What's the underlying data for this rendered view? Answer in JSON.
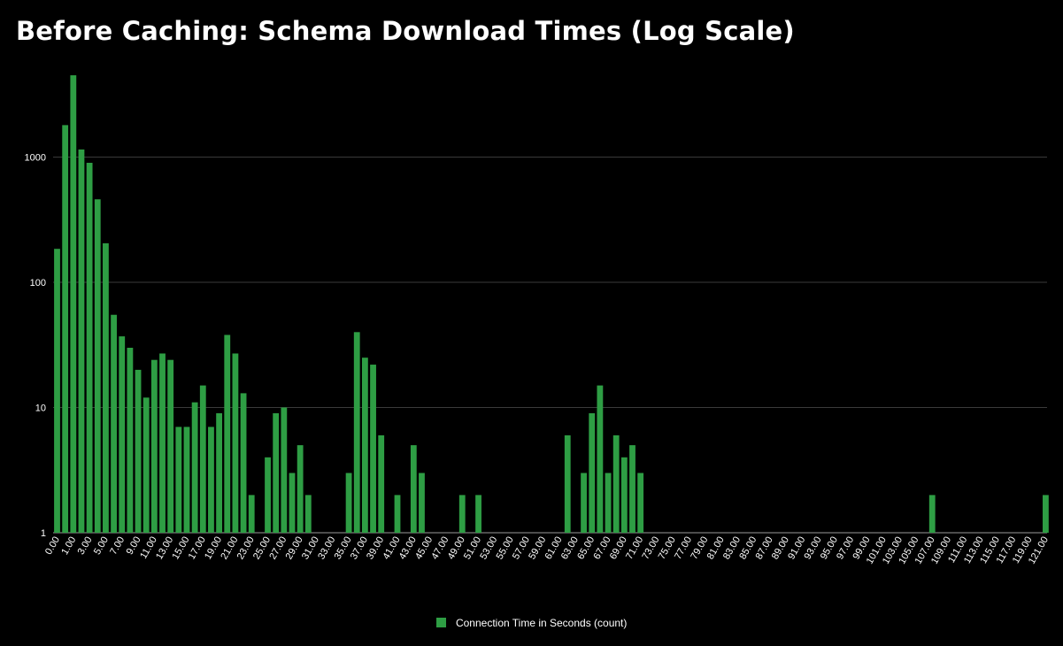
{
  "chart_data": {
    "type": "bar",
    "title": "Before Caching: Schema Download Times (Log Scale)",
    "xlabel": "",
    "ylabel": "",
    "y_scale": "log",
    "ylim": [
      1,
      5000
    ],
    "yticks": [
      1,
      10,
      100,
      1000
    ],
    "ytick_labels": [
      "1",
      "10",
      "100",
      "1000"
    ],
    "grid": true,
    "legend_position": "bottom",
    "bar_color": "#2e9e44",
    "series": [
      {
        "name": "Connection Time in Seconds (count)",
        "x": [
          0,
          1,
          2,
          3,
          4,
          5,
          6,
          7,
          8,
          9,
          10,
          11,
          12,
          13,
          14,
          15,
          16,
          17,
          18,
          19,
          20,
          21,
          22,
          23,
          24,
          26,
          27,
          28,
          29,
          30,
          31,
          36,
          37,
          38,
          39,
          40,
          42,
          44,
          45,
          50,
          52,
          63,
          65,
          66,
          67,
          68,
          69,
          70,
          71,
          72,
          108,
          122
        ],
        "values": [
          185,
          1800,
          4500,
          1150,
          900,
          460,
          205,
          55,
          37,
          30,
          20,
          12,
          24,
          27,
          24,
          7,
          7,
          11,
          15,
          7,
          9,
          38,
          27,
          13,
          2,
          4,
          9,
          10,
          3,
          5,
          2,
          3,
          40,
          25,
          22,
          6,
          2,
          5,
          3,
          2,
          2,
          6,
          3,
          9,
          15,
          3,
          6,
          4,
          5,
          3,
          2,
          2
        ]
      }
    ],
    "x_tick_labels": [
      "0.00",
      "1.00",
      "3.00",
      "5.00",
      "7.00",
      "9.00",
      "11.00",
      "13.00",
      "15.00",
      "17.00",
      "19.00",
      "21.00",
      "23.00",
      "25.00",
      "27.00",
      "29.00",
      "31.00",
      "33.00",
      "35.00",
      "37.00",
      "39.00",
      "41.00",
      "43.00",
      "45.00",
      "47.00",
      "49.00",
      "51.00",
      "53.00",
      "55.00",
      "57.00",
      "59.00",
      "61.00",
      "63.00",
      "65.00",
      "67.00",
      "69.00",
      "71.00",
      "73.00",
      "75.00",
      "77.00",
      "79.00",
      "81.00",
      "83.00",
      "85.00",
      "87.00",
      "89.00",
      "91.00",
      "93.00",
      "95.00",
      "97.00",
      "99.00",
      "101.00",
      "103.00",
      "105.00",
      "107.00",
      "109.00",
      "111.00",
      "113.00",
      "115.00",
      "117.00",
      "119.00",
      "121.00"
    ]
  }
}
